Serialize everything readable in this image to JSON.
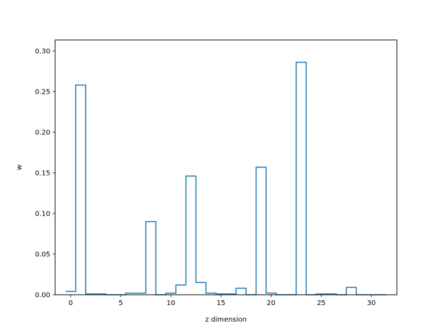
{
  "chart_data": {
    "type": "step",
    "title": "",
    "xlabel": "z dimension",
    "ylabel": "w",
    "xlim": [
      -1.55,
      32.55
    ],
    "ylim": [
      0,
      0.3135
    ],
    "x_ticks": [
      0,
      5,
      10,
      15,
      20,
      25,
      30
    ],
    "y_ticks": [
      0.0,
      0.05,
      0.1,
      0.15,
      0.2,
      0.25,
      0.3
    ],
    "x_tick_labels": [
      "0",
      "5",
      "10",
      "15",
      "20",
      "25",
      "30"
    ],
    "y_tick_labels": [
      "0.00",
      "0.05",
      "0.10",
      "0.15",
      "0.20",
      "0.25",
      "0.30"
    ],
    "series": [
      {
        "color": "#1f77b4",
        "x": [
          0,
          1,
          2,
          3,
          4,
          5,
          6,
          7,
          8,
          9,
          10,
          11,
          12,
          13,
          14,
          15,
          16,
          17,
          18,
          19,
          20,
          21,
          22,
          23,
          24,
          25,
          26,
          27,
          28,
          29,
          30,
          31
        ],
        "values": [
          0.004,
          0.258,
          0.001,
          0.001,
          0.0,
          0.0,
          0.002,
          0.002,
          0.09,
          0.0,
          0.002,
          0.012,
          0.146,
          0.015,
          0.002,
          0.001,
          0.001,
          0.008,
          0.0,
          0.157,
          0.002,
          0.0,
          0.0,
          0.286,
          0.0,
          0.001,
          0.001,
          0.0,
          0.009,
          0.0,
          0.0,
          0.0
        ]
      }
    ],
    "grid": false,
    "legend": "none"
  }
}
